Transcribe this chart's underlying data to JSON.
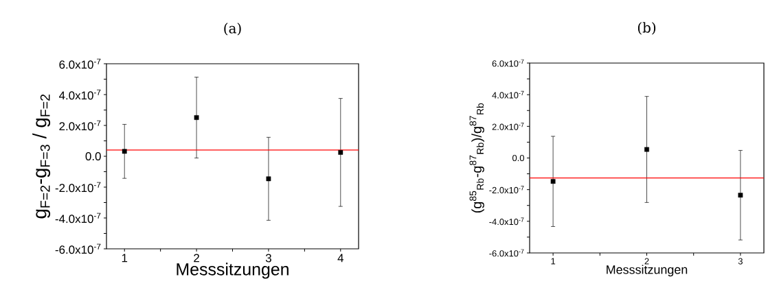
{
  "chart_data": [
    {
      "type": "scatter",
      "title": "(a)",
      "xlabel": "Messsitzungen",
      "ylabel": "g$_{F=2}$-g$_{F=3}$ / g$_{F=2}$",
      "x": [
        1,
        2,
        3,
        4
      ],
      "series": [
        {
          "color": "#000000",
          "values": [
            3.2e-08,
            2.51e-07,
            -1.46e-07,
            2.5e-08
          ],
          "errors": [
            1.75e-07,
            2.62e-07,
            2.69e-07,
            3.5e-07
          ]
        }
      ],
      "marker": "square",
      "xlim": [
        0.75,
        4.25
      ],
      "xticks": [
        1,
        {
          "value": 1.5,
          "label": null
        },
        2,
        {
          "value": 2.5,
          "label": null
        },
        3,
        {
          "value": 3.5,
          "label": null
        },
        4
      ],
      "ylim": [
        -6e-07,
        6e-07
      ],
      "yticks": [
        {
          "value": -6e-07,
          "label": "-6.0x10$^{-7}$"
        },
        {
          "value": -5e-07,
          "label": null
        },
        {
          "value": -4e-07,
          "label": "-4.0x10$^{-7}$"
        },
        {
          "value": -3e-07,
          "label": null
        },
        {
          "value": -2e-07,
          "label": "-2.0x10$^{-7}$"
        },
        {
          "value": -1e-07,
          "label": null
        },
        {
          "value": 0,
          "label": "0.0"
        },
        {
          "value": 1e-07,
          "label": null
        },
        {
          "value": 2e-07,
          "label": "2.0x10$^{-7}$"
        },
        {
          "value": 3e-07,
          "label": null
        },
        {
          "value": 4e-07,
          "label": "4.0x10$^{-7}$"
        },
        {
          "value": 5e-07,
          "label": null
        },
        {
          "value": 6e-07,
          "label": "6.0x10$^{-7}$"
        }
      ],
      "ref_lines": [
        {
          "axis": "y",
          "value": 4.1e-08,
          "color": "#ff0000"
        }
      ]
    },
    {
      "type": "scatter",
      "title": "(b)",
      "xlabel": "Messsitzungen",
      "ylabel": "(g$^{85}$$_{Rb}$-g$^{87}$$_{Rb}$)/g$^{87}$$_{Rb}$",
      "x": [
        1,
        2,
        3
      ],
      "series": [
        {
          "color": "#000000",
          "values": [
            -1.48e-07,
            5.4e-08,
            -2.35e-07
          ],
          "errors": [
            2.85e-07,
            3.35e-07,
            2.83e-07
          ]
        }
      ],
      "marker": "square",
      "xlim": [
        0.75,
        3.25
      ],
      "xticks": [
        1,
        {
          "value": 1.5,
          "label": null
        },
        2,
        {
          "value": 2.5,
          "label": null
        },
        3
      ],
      "ylim": [
        -6e-07,
        6e-07
      ],
      "yticks": [
        {
          "value": -6e-07,
          "label": "-6.0x10$^{-7}$"
        },
        {
          "value": -5e-07,
          "label": null
        },
        {
          "value": -4e-07,
          "label": "-4.0x10$^{-7}$"
        },
        {
          "value": -3e-07,
          "label": null
        },
        {
          "value": -2e-07,
          "label": "-2.0x10$^{-7}$"
        },
        {
          "value": -1e-07,
          "label": null
        },
        {
          "value": 0,
          "label": "0.0"
        },
        {
          "value": 1e-07,
          "label": null
        },
        {
          "value": 2e-07,
          "label": "2.0x10$^{-7}$"
        },
        {
          "value": 3e-07,
          "label": null
        },
        {
          "value": 4e-07,
          "label": "4.0x10$^{-7}$"
        },
        {
          "value": 5e-07,
          "label": null
        },
        {
          "value": 6e-07,
          "label": "6.0x10$^{-7}$"
        }
      ],
      "ref_lines": [
        {
          "axis": "y",
          "value": -1.26e-07,
          "color": "#ff0000"
        }
      ]
    }
  ]
}
